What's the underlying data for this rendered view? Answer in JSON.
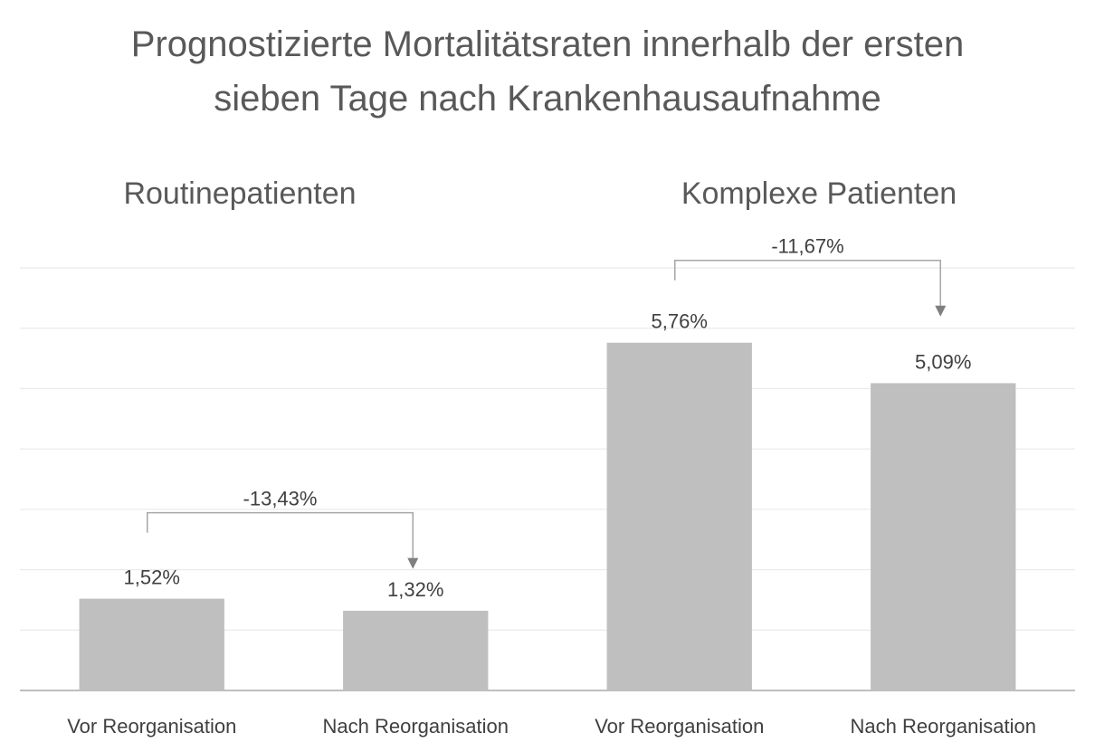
{
  "chart_data": {
    "type": "bar",
    "title": [
      "Prognostizierte Mortalitätsraten innerhalb der ersten",
      "sieben Tage nach Krankenhausaufnahme"
    ],
    "groups": [
      {
        "name": "Routinepatienten",
        "categories": [
          "Vor Reorganisation",
          "Nach Reorganisation"
        ],
        "values": [
          1.52,
          1.32
        ],
        "value_labels": [
          "1,52%",
          "1,32%"
        ],
        "change_label": "-13,43%"
      },
      {
        "name": "Komplexe Patienten",
        "categories": [
          "Vor Reorganisation",
          "Nach Reorganisation"
        ],
        "values": [
          5.76,
          5.09
        ],
        "value_labels": [
          "5,76%",
          "5,09%"
        ],
        "change_label": "-11,67%"
      }
    ],
    "ylim": [
      0,
      7
    ],
    "gridlines": true,
    "legend": "none",
    "colors": {
      "bar": "#bfbfbf",
      "grid": "#e6e6e6",
      "axis": "#bfbfbf",
      "bracket": "#a6a6a6",
      "arrow": "#7f7f7f"
    }
  }
}
